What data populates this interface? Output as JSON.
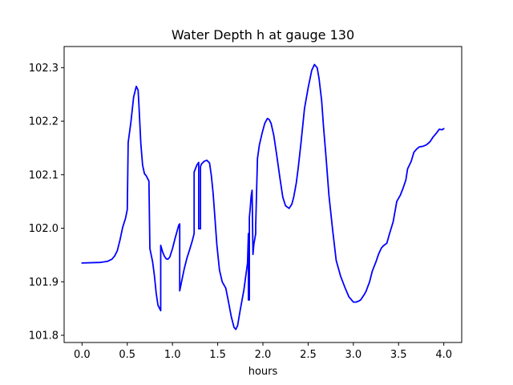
{
  "chart_data": {
    "type": "line",
    "title": "Water Depth h at gauge 130",
    "xlabel": "hours",
    "ylabel": "",
    "xlim": [
      -0.198,
      4.198
    ],
    "ylim": [
      101.7865,
      102.3395
    ],
    "xticks": [
      {
        "value": 0.0,
        "label": "0.0"
      },
      {
        "value": 0.5,
        "label": "0.5"
      },
      {
        "value": 1.0,
        "label": "1.0"
      },
      {
        "value": 1.5,
        "label": "1.5"
      },
      {
        "value": 2.0,
        "label": "2.0"
      },
      {
        "value": 2.5,
        "label": "2.5"
      },
      {
        "value": 3.0,
        "label": "3.0"
      },
      {
        "value": 3.5,
        "label": "3.5"
      },
      {
        "value": 4.0,
        "label": "4.0"
      }
    ],
    "yticks": [
      {
        "value": 101.8,
        "label": "101.8"
      },
      {
        "value": 101.9,
        "label": "101.9"
      },
      {
        "value": 102.0,
        "label": "102.0"
      },
      {
        "value": 102.1,
        "label": "102.1"
      },
      {
        "value": 102.2,
        "label": "102.2"
      },
      {
        "value": 102.3,
        "label": "102.3"
      }
    ],
    "grid": false,
    "legend": "none",
    "series": [
      {
        "color": "#0000ff",
        "x": [
          0.0,
          0.2,
          0.28,
          0.33,
          0.36,
          0.39,
          0.42,
          0.45,
          0.48,
          0.49,
          0.5,
          0.51,
          0.54,
          0.57,
          0.6,
          0.62,
          0.63,
          0.65,
          0.67,
          0.69,
          0.71,
          0.74,
          0.75,
          0.75,
          0.78,
          0.8,
          0.82,
          0.84,
          0.87,
          0.87,
          0.89,
          0.91,
          0.93,
          0.95,
          0.97,
          1.0,
          1.03,
          1.07,
          1.08,
          1.08,
          1.1,
          1.13,
          1.16,
          1.19,
          1.22,
          1.24,
          1.24,
          1.27,
          1.29,
          1.29,
          1.31,
          1.31,
          1.32,
          1.35,
          1.38,
          1.41,
          1.43,
          1.45,
          1.47,
          1.49,
          1.52,
          1.55,
          1.59,
          1.62,
          1.65,
          1.68,
          1.7,
          1.72,
          1.75,
          1.79,
          1.83,
          1.84,
          1.84,
          1.85,
          1.85,
          1.86,
          1.87,
          1.88,
          1.89,
          1.9,
          1.92,
          1.92,
          1.94,
          1.96,
          1.99,
          2.02,
          2.05,
          2.07,
          2.09,
          2.12,
          2.15,
          2.19,
          2.22,
          2.25,
          2.29,
          2.32,
          2.34,
          2.37,
          2.39,
          2.42,
          2.46,
          2.5,
          2.54,
          2.57,
          2.6,
          2.62,
          2.65,
          2.67,
          2.7,
          2.73,
          2.77,
          2.81,
          2.86,
          2.91,
          2.95,
          3.0,
          3.03,
          3.06,
          3.08,
          3.12,
          3.14,
          3.18,
          3.21,
          3.25,
          3.28,
          3.31,
          3.33,
          3.37,
          3.4,
          3.44,
          3.48,
          3.52,
          3.55,
          3.58,
          3.6,
          3.64,
          3.67,
          3.7,
          3.73,
          3.77,
          3.81,
          3.85,
          3.88,
          3.92,
          3.95,
          3.98,
          4.0
        ],
        "y": [
          101.935,
          101.936,
          101.938,
          101.942,
          101.948,
          101.958,
          101.978,
          102.002,
          102.018,
          102.026,
          102.035,
          102.16,
          102.198,
          102.245,
          102.265,
          102.258,
          102.228,
          102.158,
          102.118,
          102.102,
          102.098,
          102.088,
          101.962,
          101.962,
          101.938,
          101.912,
          101.878,
          101.856,
          101.846,
          101.968,
          101.956,
          101.948,
          101.943,
          101.942,
          101.946,
          101.962,
          101.982,
          102.006,
          102.008,
          101.883,
          101.9,
          101.924,
          101.944,
          101.96,
          101.977,
          101.99,
          102.105,
          102.118,
          102.123,
          101.999,
          101.999,
          102.115,
          102.12,
          102.125,
          102.127,
          102.122,
          102.098,
          102.065,
          102.018,
          101.97,
          101.922,
          101.9,
          101.888,
          101.862,
          101.835,
          101.815,
          101.811,
          101.818,
          101.848,
          101.885,
          101.935,
          101.99,
          101.866,
          101.866,
          102.02,
          102.038,
          102.06,
          102.071,
          101.951,
          101.97,
          101.99,
          102.005,
          102.13,
          102.155,
          102.177,
          102.196,
          102.205,
          102.203,
          102.196,
          102.174,
          102.14,
          102.092,
          102.058,
          102.042,
          102.037,
          102.045,
          102.058,
          102.085,
          102.112,
          102.158,
          102.224,
          102.262,
          102.295,
          102.306,
          102.3,
          102.28,
          102.238,
          102.19,
          102.128,
          102.061,
          101.998,
          101.94,
          101.91,
          101.888,
          101.872,
          101.862,
          101.862,
          101.864,
          101.866,
          101.876,
          101.882,
          101.9,
          101.92,
          101.937,
          101.952,
          101.963,
          101.967,
          101.972,
          101.99,
          102.012,
          102.05,
          102.062,
          102.075,
          102.09,
          102.111,
          102.125,
          102.142,
          102.148,
          102.152,
          102.153,
          102.156,
          102.162,
          102.17,
          102.178,
          102.185,
          102.184,
          102.186
        ]
      }
    ]
  }
}
